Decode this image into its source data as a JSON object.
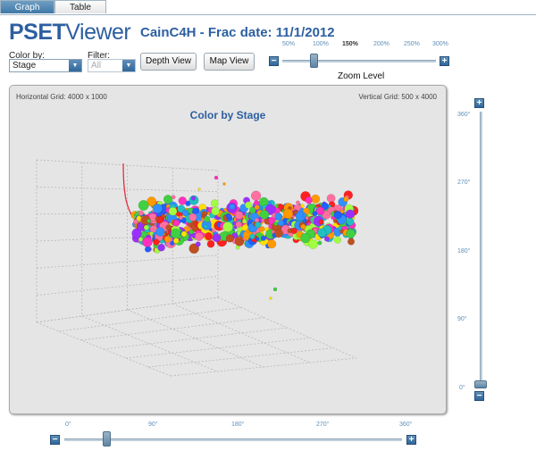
{
  "tabs": [
    {
      "label": "Graph",
      "active": true
    },
    {
      "label": "Table",
      "active": false
    }
  ],
  "logo": {
    "part1": "PSET",
    "part2": "Viewer"
  },
  "title": "CainC4H - Frac date: 11/1/2012",
  "color_by": {
    "label": "Color by:",
    "value": "Stage"
  },
  "filter": {
    "label": "Filter:",
    "value": "All"
  },
  "buttons": {
    "depth_view": "Depth View",
    "map_view": "Map View"
  },
  "zoom": {
    "ticks": [
      "50%",
      "100%",
      "150%",
      "200%",
      "250%",
      "300%"
    ],
    "current": "150%",
    "label": "Zoom Level",
    "minus": "−",
    "plus": "+"
  },
  "graph": {
    "horizontal_grid": "Horizontal Grid: 4000 x 1000",
    "vertical_grid": "Vertical Grid: 500 x 4000",
    "title": "Color by Stage"
  },
  "vertical_rotation": {
    "ticks": [
      "360°",
      "270°",
      "180°",
      "90°",
      "0°"
    ],
    "plus": "+",
    "minus": "−",
    "value_deg": 0
  },
  "horizontal_rotation": {
    "ticks": [
      "0°",
      "90°",
      "180°",
      "270°",
      "360°"
    ],
    "plus": "+",
    "minus": "−",
    "value_deg": 45
  },
  "colors": {
    "accent": "#2d5fa0",
    "tab_active": "#4f86b5",
    "panel_bg": "#e5e5e5",
    "well_path": "#e03040",
    "bubble_palette": [
      "#ff2020",
      "#ff9a00",
      "#ffe000",
      "#40d040",
      "#20c0c0",
      "#2060ff",
      "#9a30ff",
      "#ff30c0",
      "#ff70a0",
      "#a0ff40",
      "#c05020",
      "#3090ff"
    ]
  }
}
